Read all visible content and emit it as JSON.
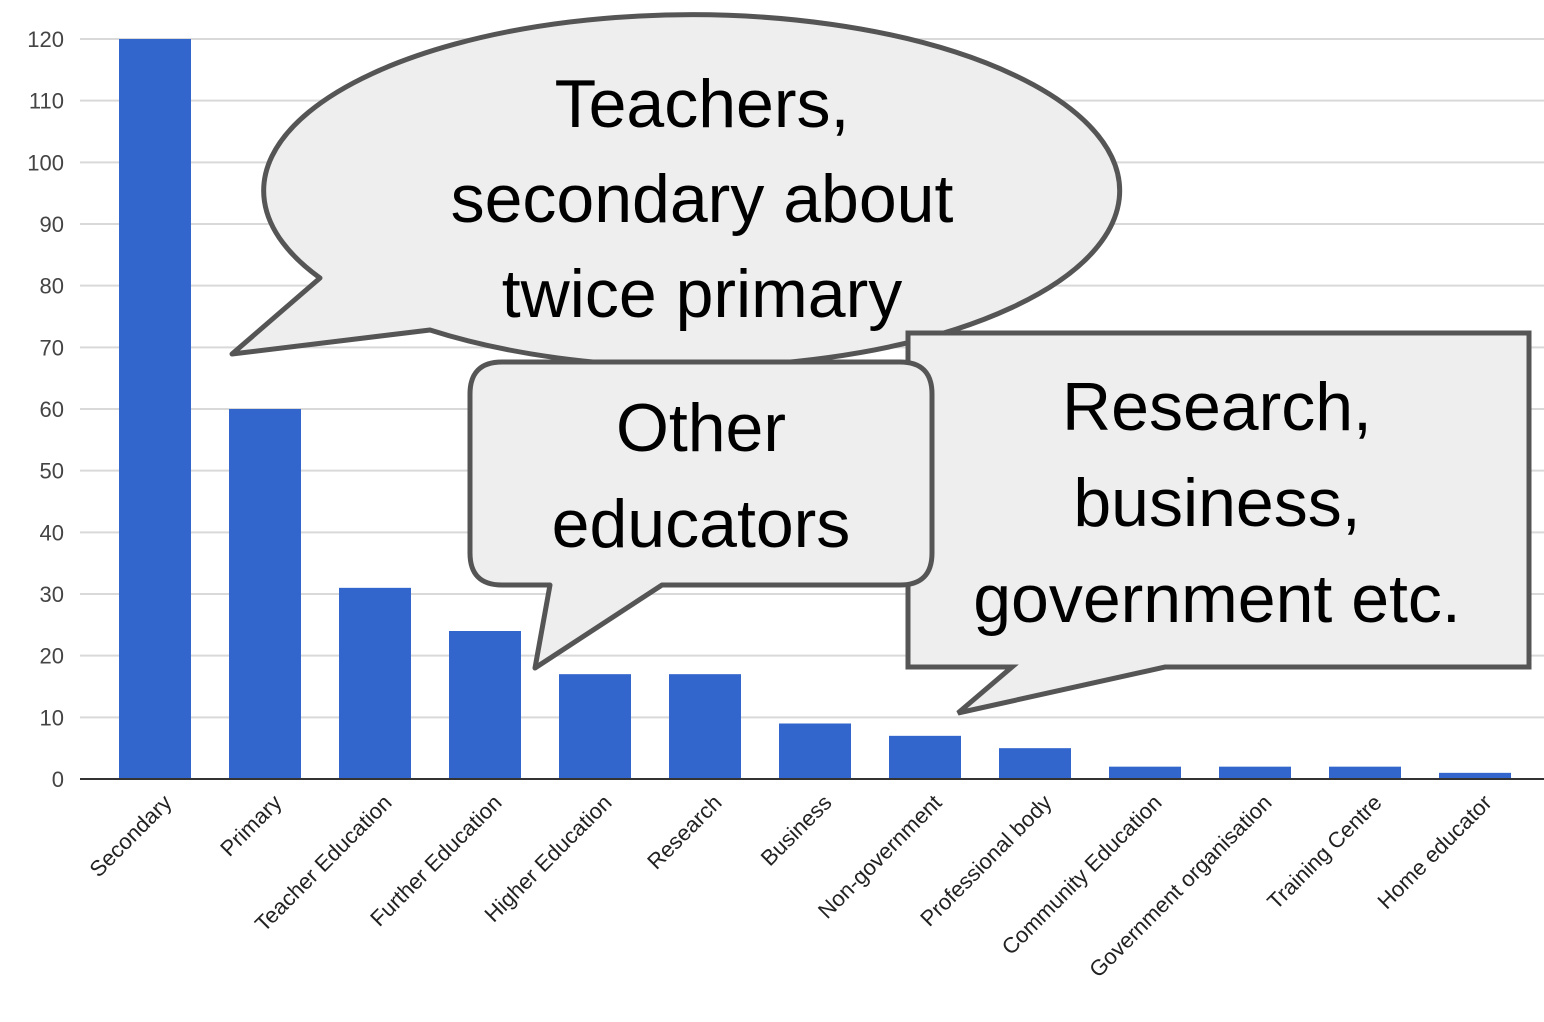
{
  "chart_data": {
    "type": "bar",
    "categories": [
      "Secondary",
      "Primary",
      "Teacher Education",
      "Further Education",
      "Higher Education",
      "Research",
      "Business",
      "Non-government",
      "Professional body",
      "Community Education",
      "Government organisation",
      "Training Centre",
      "Home educator"
    ],
    "values": [
      120,
      60,
      31,
      24,
      17,
      17,
      9,
      7,
      5,
      2,
      2,
      2,
      1
    ],
    "ylim": [
      0,
      120
    ],
    "yticks": [
      0,
      10,
      20,
      30,
      40,
      50,
      60,
      70,
      80,
      90,
      100,
      110,
      120
    ],
    "grid": true,
    "bar_color": "#3366CC",
    "annotations": [
      {
        "id": "teachers",
        "lines": [
          "Teachers,",
          "secondary about",
          "twice primary"
        ]
      },
      {
        "id": "educators",
        "lines": [
          "Other",
          "educators"
        ]
      },
      {
        "id": "research",
        "lines": [
          "Research,",
          "business,",
          "government etc."
        ]
      }
    ]
  }
}
